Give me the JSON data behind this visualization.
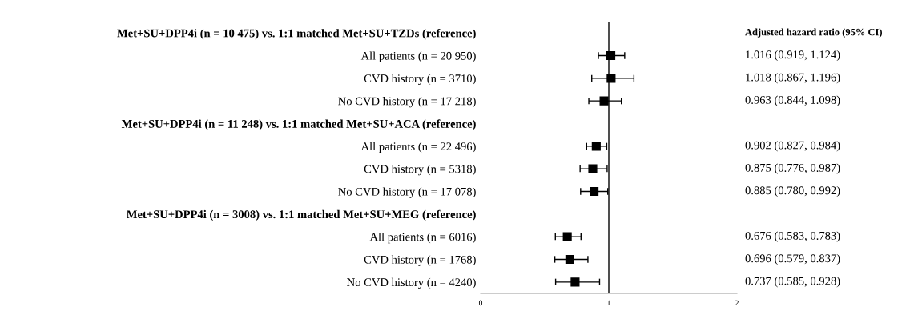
{
  "chart_data": {
    "type": "scatter",
    "orientation": "horizontal",
    "categories": [
      "Met+SU+DPP4i (n = 10 475) vs. 1:1 matched Met+SU+TZDs (reference)",
      "All patients (n = 20 950)",
      "CVD history (n = 3710)",
      "No CVD history (n = 17 218)",
      "Met+SU+DPP4i (n = 11 248) vs. 1:1 matched Met+SU+ACA (reference)",
      "All patients (n = 22 496)",
      "CVD history (n = 5318)",
      "No CVD history (n = 17 078)",
      "Met+SU+DPP4i (n = 3008) vs. 1:1 matched Met+SU+MEG (reference)",
      "All patients (n = 6016)",
      "CVD history (n = 1768)",
      "No CVD history (n = 4240)"
    ],
    "values": [
      null,
      1.016,
      1.018,
      0.963,
      null,
      0.902,
      0.875,
      0.885,
      null,
      0.676,
      0.696,
      0.737
    ],
    "errors": [
      null,
      [
        0.919,
        1.124
      ],
      [
        0.867,
        1.196
      ],
      [
        0.844,
        1.098
      ],
      null,
      [
        0.827,
        0.984
      ],
      [
        0.776,
        0.987
      ],
      [
        0.78,
        0.992
      ],
      null,
      [
        0.583,
        0.783
      ],
      [
        0.579,
        0.837
      ],
      [
        0.585,
        0.928
      ]
    ],
    "value_labels": [
      null,
      "1.016 (0.919, 1.124)",
      "1.018 (0.867, 1.196)",
      "0.963 (0.844, 1.098)",
      null,
      "0.902 (0.827, 0.984)",
      "0.875 (0.776, 0.987)",
      "0.885 (0.780, 0.992)",
      null,
      "0.676 (0.583, 0.783)",
      "0.696 (0.579, 0.837)",
      "0.737 (0.585, 0.928)"
    ],
    "color": "#000000",
    "marker": "square",
    "xlim": [
      0,
      2
    ],
    "xticks": [
      0,
      1,
      2
    ],
    "ref_lines": [
      {
        "axis": "x",
        "value": 1,
        "color": "#000000"
      }
    ],
    "annotations": [
      "Adjusted hazard ratio (95% CI)"
    ],
    "grid": false
  }
}
